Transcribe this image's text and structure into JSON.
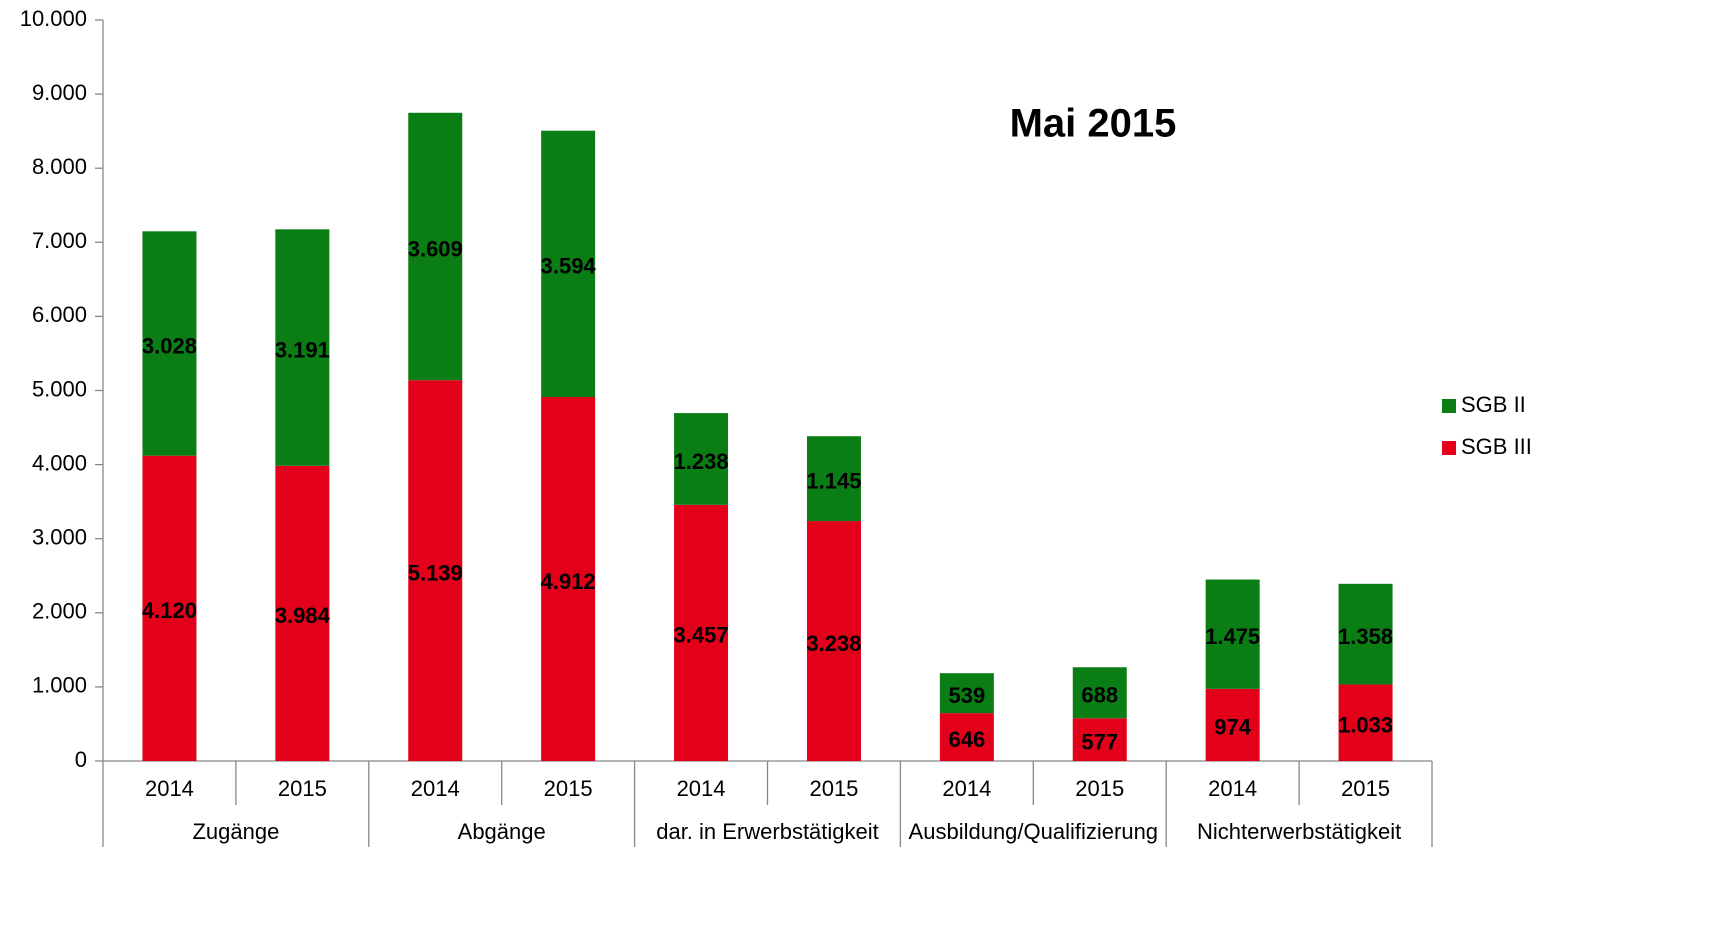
{
  "chart_data": {
    "type": "bar",
    "stacked": true,
    "title": "Mai 2015",
    "categories": [
      "2014",
      "2015",
      "2014",
      "2015",
      "2014",
      "2015",
      "2014",
      "2015",
      "2014",
      "2015"
    ],
    "groups": [
      "Zugänge",
      "Abgänge",
      "dar. in Erwerbstätigkeit",
      "Ausbildung/Qualifizierung",
      "Nichterwerbstätigkeit"
    ],
    "series": [
      {
        "name": "SGB III",
        "color": "#e2001a",
        "values": [
          4120,
          3984,
          5139,
          4912,
          3457,
          3238,
          646,
          577,
          974,
          1033
        ],
        "value_labels": [
          "4.120",
          "3.984",
          "5.139",
          "4.912",
          "3.457",
          "3.238",
          "646",
          "577",
          "974",
          "1.033"
        ]
      },
      {
        "name": "SGB II",
        "color": "#0a7d14",
        "values": [
          3028,
          3191,
          3609,
          3594,
          1238,
          1145,
          539,
          688,
          1475,
          1358
        ],
        "value_labels": [
          "3.028",
          "3.191",
          "3.609",
          "3.594",
          "1.238",
          "1.145",
          "539",
          "688",
          "1.475",
          "1.358"
        ]
      }
    ],
    "ylim": [
      0,
      10000
    ],
    "yticks": [
      0,
      {
        "value": 1000,
        "label": "1.000"
      },
      {
        "value": 2000,
        "label": "2.000"
      },
      {
        "value": 3000,
        "label": "3.000"
      },
      {
        "value": 4000,
        "label": "4.000"
      },
      {
        "value": 5000,
        "label": "5.000"
      },
      {
        "value": 6000,
        "label": "6.000"
      },
      {
        "value": 7000,
        "label": "7.000"
      },
      {
        "value": 8000,
        "label": "8.000"
      },
      {
        "value": 9000,
        "label": "9.000"
      },
      {
        "value": 10000,
        "label": "10.000"
      }
    ],
    "grid": false,
    "legend": "right"
  }
}
